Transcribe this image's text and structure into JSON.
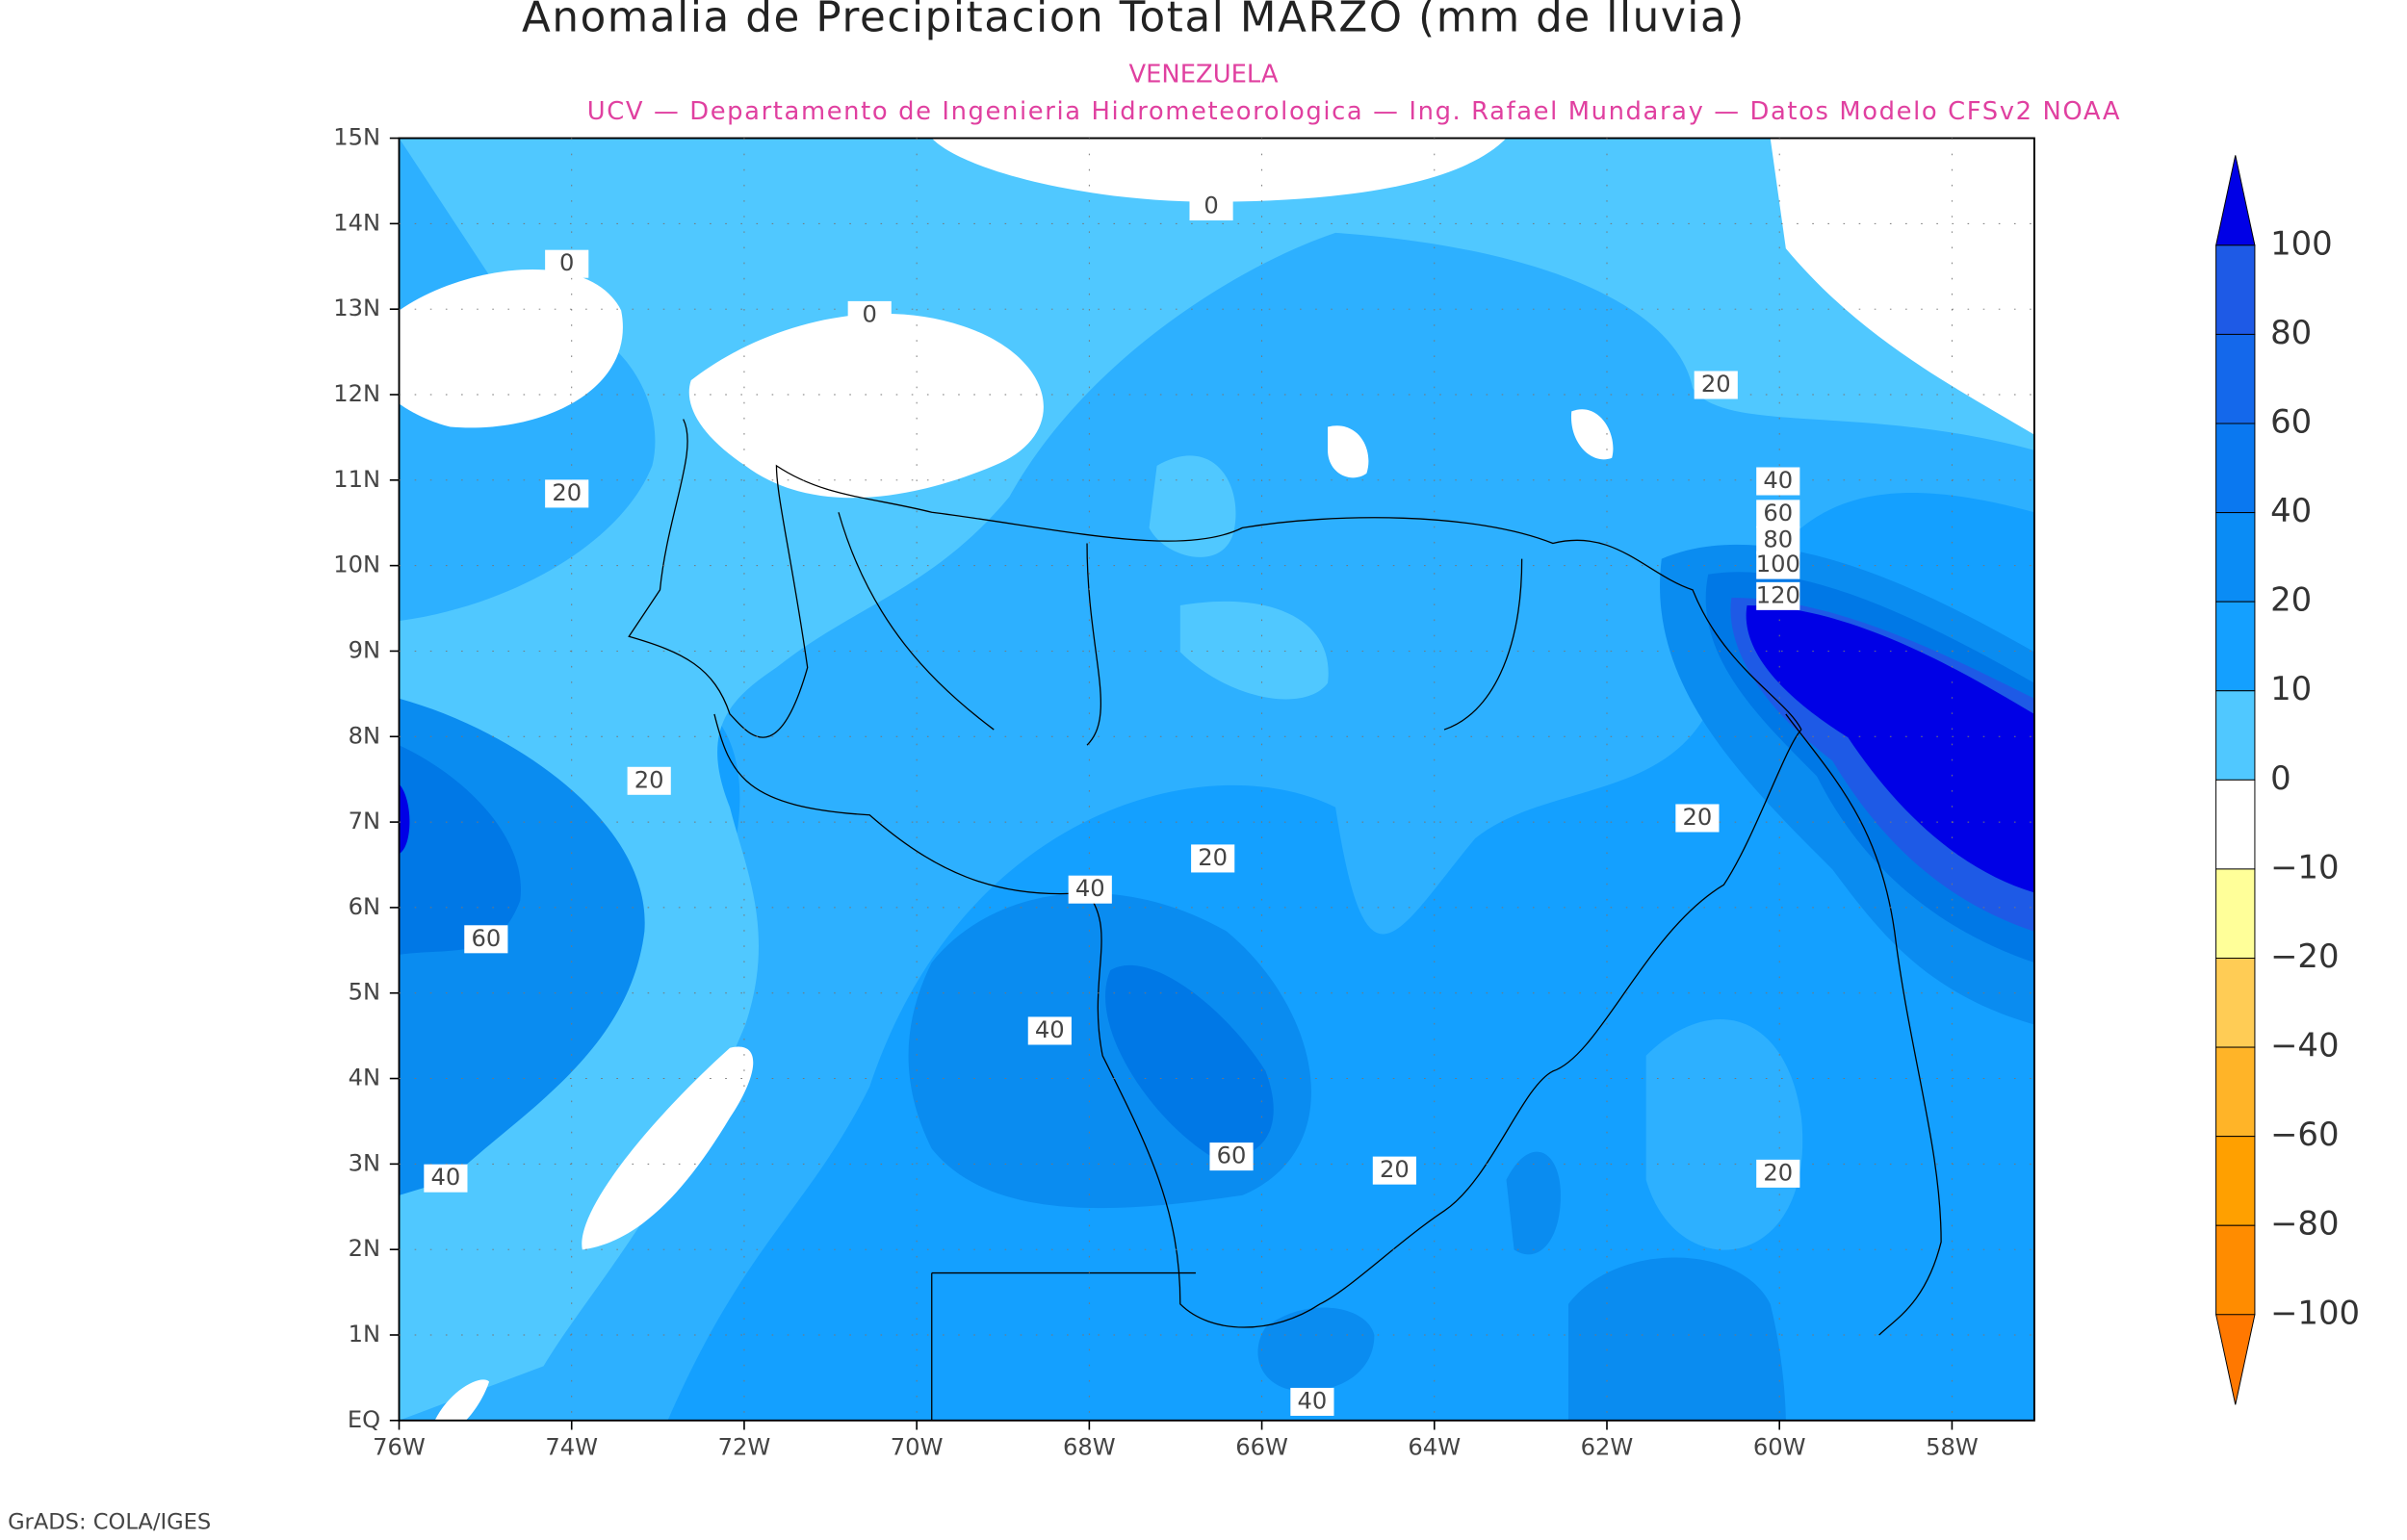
{
  "title": "Anomalia de Precipitacion Total MARZO (mm de lluvia)",
  "subtitle": "VENEZUELA",
  "credit": "UCV — Departamento de Ingenieria Hidrometeorologica — Ing. Rafael Mundaray — Datos Modelo CFSv2 NOAA",
  "footer": "GrADS: COLA/IGES",
  "map": {
    "lat_ticks": [
      "15N",
      "14N",
      "13N",
      "12N",
      "11N",
      "10N",
      "9N",
      "8N",
      "7N",
      "6N",
      "5N",
      "4N",
      "3N",
      "2N",
      "1N",
      "EQ"
    ],
    "lon_ticks": [
      "76W",
      "74W",
      "72W",
      "70W",
      "68W",
      "66W",
      "64W",
      "62W",
      "60W",
      "58W"
    ],
    "contour_labels": [
      "0",
      "0",
      "0",
      "20",
      "20",
      "40",
      "60",
      "80",
      "100",
      "120",
      "20",
      "20",
      "20",
      "40",
      "60",
      "40",
      "60",
      "20",
      "20",
      "40",
      "40"
    ]
  },
  "colorbar": {
    "labels": [
      "100",
      "80",
      "60",
      "40",
      "20",
      "10",
      "0",
      "−10",
      "−20",
      "−40",
      "−60",
      "−80",
      "−100"
    ],
    "colors": [
      "#0000e6",
      "#1e5ae6",
      "#1468eb",
      "#0a78f0",
      "#0a8cf5",
      "#14a0ff",
      "#50c8ff",
      "#ffffff",
      "#ffff99",
      "#ffcc55",
      "#ffb428",
      "#ffa000",
      "#ff8c00",
      "#ff7800"
    ]
  }
}
